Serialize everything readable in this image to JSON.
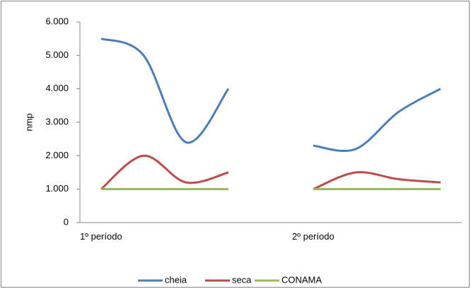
{
  "chart_data": {
    "type": "line",
    "y_label": "nmp",
    "categories": [
      "1º período",
      null,
      null,
      null,
      null,
      "2º período",
      null,
      null,
      null
    ],
    "series": [
      {
        "name": "cheia",
        "color": "#4a7ebb",
        "values": [
          5500,
          5000,
          2400,
          4000,
          null,
          2300,
          2200,
          3300,
          4000
        ]
      },
      {
        "name": "seca",
        "color": "#be4b48",
        "values": [
          1000,
          2000,
          1200,
          1500,
          null,
          1000,
          1500,
          1300,
          1200
        ]
      },
      {
        "name": "CONAMA",
        "color": "#98b954",
        "values": [
          1000,
          1000,
          1000,
          1000,
          null,
          1000,
          1000,
          1000,
          1000
        ]
      }
    ],
    "ylim": [
      0,
      6000
    ],
    "yticks": [
      0,
      {
        "value": 1000,
        "label": "1.000"
      },
      {
        "value": 2000,
        "label": "2.000"
      },
      {
        "value": 3000,
        "label": "3.000"
      },
      {
        "value": 4000,
        "label": "4.000"
      },
      {
        "value": 5000,
        "label": "5.000"
      },
      {
        "value": 6000,
        "label": "6.000"
      }
    ],
    "smooth": true,
    "legend": "bottom"
  }
}
